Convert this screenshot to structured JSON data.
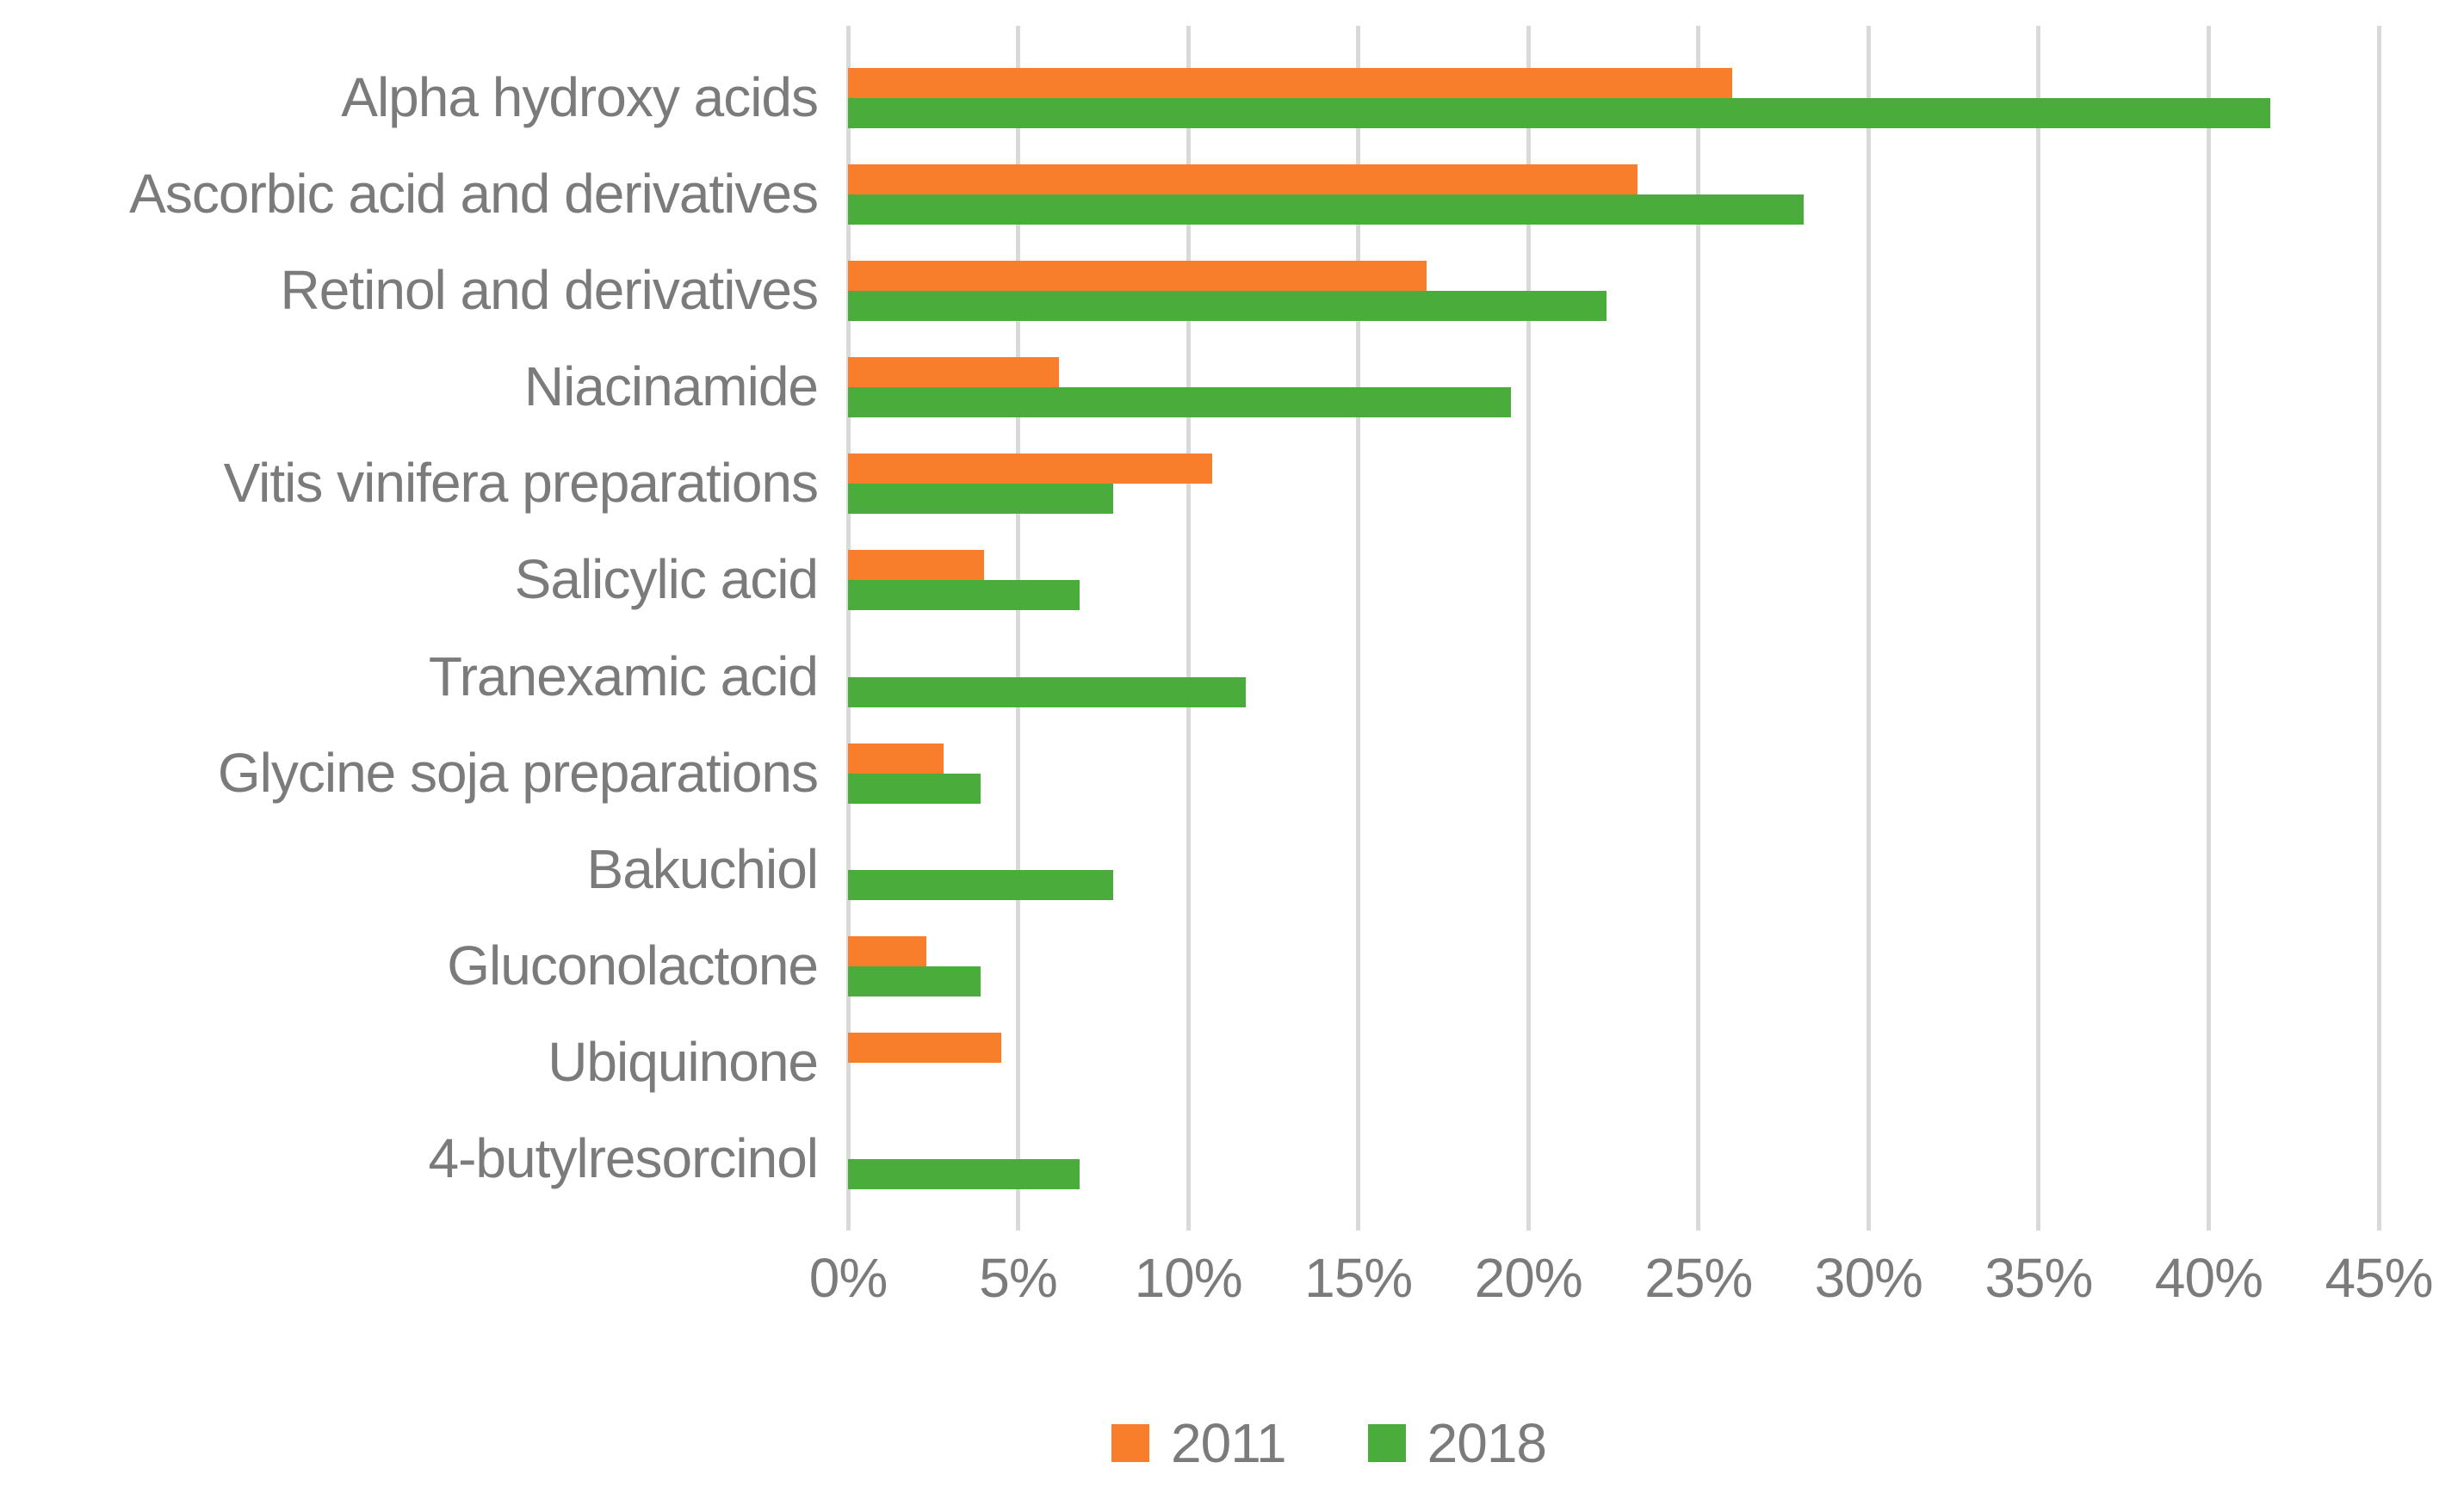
{
  "chart_data": {
    "type": "bar",
    "orientation": "horizontal",
    "title": "",
    "xlabel": "",
    "ylabel": "",
    "xlim": [
      0,
      45
    ],
    "x_tick_step": 5,
    "x_ticks": [
      "0%",
      "5%",
      "10%",
      "15%",
      "20%",
      "25%",
      "30%",
      "35%",
      "40%",
      "45%"
    ],
    "grid": "vertical-only",
    "legend_position": "bottom-center",
    "categories": [
      "Alpha hydroxy acids",
      "Ascorbic acid and derivatives",
      "Retinol and derivatives",
      "Niacinamide",
      "Vitis vinifera preparations",
      "Salicylic acid",
      "Tranexamic acid",
      "Glycine soja preparations",
      "Bakuchiol",
      "Gluconolactone",
      "Ubiquinone",
      "4-butylresorcinol"
    ],
    "series": [
      {
        "name": "2011",
        "color": "#f87e2b",
        "values": [
          26.0,
          23.2,
          17.0,
          6.2,
          10.7,
          4.0,
          0,
          2.8,
          0,
          2.3,
          4.5,
          0
        ]
      },
      {
        "name": "2018",
        "color": "#4aad3b",
        "values": [
          41.8,
          28.1,
          22.3,
          19.5,
          7.8,
          6.8,
          11.7,
          3.9,
          7.8,
          3.9,
          0,
          6.8
        ]
      }
    ]
  },
  "legend": {
    "items": [
      {
        "label": "2011",
        "color": "#f87e2b"
      },
      {
        "label": "2018",
        "color": "#4aad3b"
      }
    ]
  },
  "style": {
    "gridline_color": "#d9d9d9",
    "text_color": "#7b7b7b",
    "background": "#ffffff"
  }
}
